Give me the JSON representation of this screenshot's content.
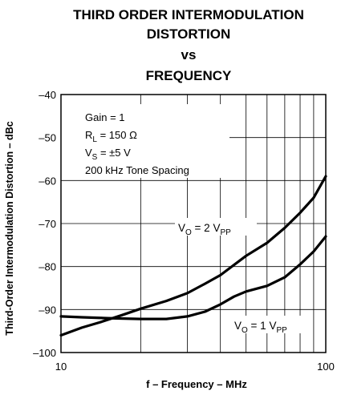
{
  "chart_data": {
    "type": "line",
    "title_lines": [
      "THIRD ORDER INTERMODULATION",
      "DISTORTION",
      "vs",
      "FREQUENCY"
    ],
    "xlabel": "f – Frequency – MHz",
    "ylabel": "Third-Order Intermodulation Distortion – dBc",
    "xscale": "log",
    "xlim": [
      10,
      100
    ],
    "ylim": [
      -100,
      -40
    ],
    "xticks": [
      10,
      100
    ],
    "xtick_labels": [
      "10",
      "100"
    ],
    "yticks": [
      -40,
      -50,
      -60,
      -70,
      -80,
      -90,
      -100
    ],
    "ytick_labels": [
      "–40",
      "–50",
      "–60",
      "–70",
      "–80",
      "–90",
      "–100"
    ],
    "grid": true,
    "conditions": {
      "gain": "Gain = 1",
      "rl_main": "R",
      "rl_sub": "L",
      "rl_value": " = 150 Ω",
      "vs_main": "V",
      "vs_sub": "S",
      "vs_value": " = ±5 V",
      "spacing": "200 kHz Tone Spacing"
    },
    "series": [
      {
        "name_main": "V",
        "name_sub1": "O",
        "name_mid": " = 2 V",
        "name_sub2": "PP",
        "x": [
          10,
          12,
          14,
          17,
          20,
          25,
          30,
          35,
          40,
          50,
          60,
          70,
          80,
          90,
          100
        ],
        "y": [
          -96.0,
          -94.2,
          -93.0,
          -91.3,
          -89.8,
          -88.0,
          -86.2,
          -84.0,
          -82.0,
          -77.5,
          -74.5,
          -71.0,
          -67.5,
          -64.0,
          -59.0
        ]
      },
      {
        "name_main": "V",
        "name_sub1": "O",
        "name_mid": " = 1 V",
        "name_sub2": "PP",
        "x": [
          10,
          12,
          15,
          20,
          25,
          30,
          35,
          40,
          45,
          50,
          60,
          70,
          80,
          90,
          100
        ],
        "y": [
          -91.6,
          -91.8,
          -92.0,
          -92.2,
          -92.2,
          -91.6,
          -90.5,
          -88.8,
          -87.0,
          -85.8,
          -84.5,
          -82.5,
          -79.5,
          -76.5,
          -73.0
        ]
      }
    ]
  }
}
